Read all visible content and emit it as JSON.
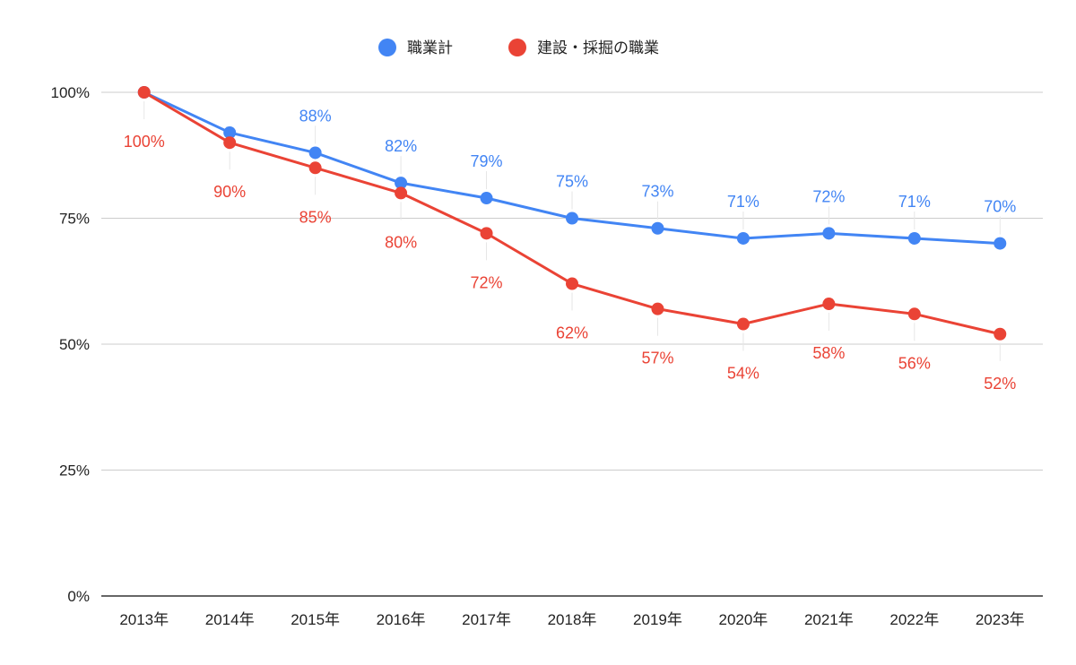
{
  "chart_data": {
    "type": "line",
    "title": "",
    "xlabel": "",
    "ylabel": "",
    "ylim": [
      0,
      100
    ],
    "yticks": [
      "0%",
      "25%",
      "50%",
      "75%",
      "100%"
    ],
    "ytick_values": [
      0,
      25,
      50,
      75,
      100
    ],
    "grid": true,
    "legend_position": "top-center",
    "categories": [
      "2013年",
      "2014年",
      "2015年",
      "2016年",
      "2017年",
      "2018年",
      "2019年",
      "2020年",
      "2021年",
      "2022年",
      "2023年"
    ],
    "series": [
      {
        "name": "職業計",
        "color": "#4285f4",
        "values": [
          100,
          92,
          88,
          82,
          79,
          75,
          73,
          71,
          72,
          71,
          70
        ],
        "labels": [
          "",
          "",
          "88%",
          "82%",
          "79%",
          "75%",
          "73%",
          "71%",
          "72%",
          "71%",
          "70%"
        ],
        "label_position": "above"
      },
      {
        "name": "建設・採掘の職業",
        "color": "#ea4335",
        "values": [
          100,
          90,
          85,
          80,
          72,
          62,
          57,
          54,
          58,
          56,
          52
        ],
        "labels": [
          "100%",
          "90%",
          "85%",
          "80%",
          "72%",
          "62%",
          "57%",
          "54%",
          "58%",
          "56%",
          "52%"
        ],
        "label_position": "below"
      }
    ]
  }
}
